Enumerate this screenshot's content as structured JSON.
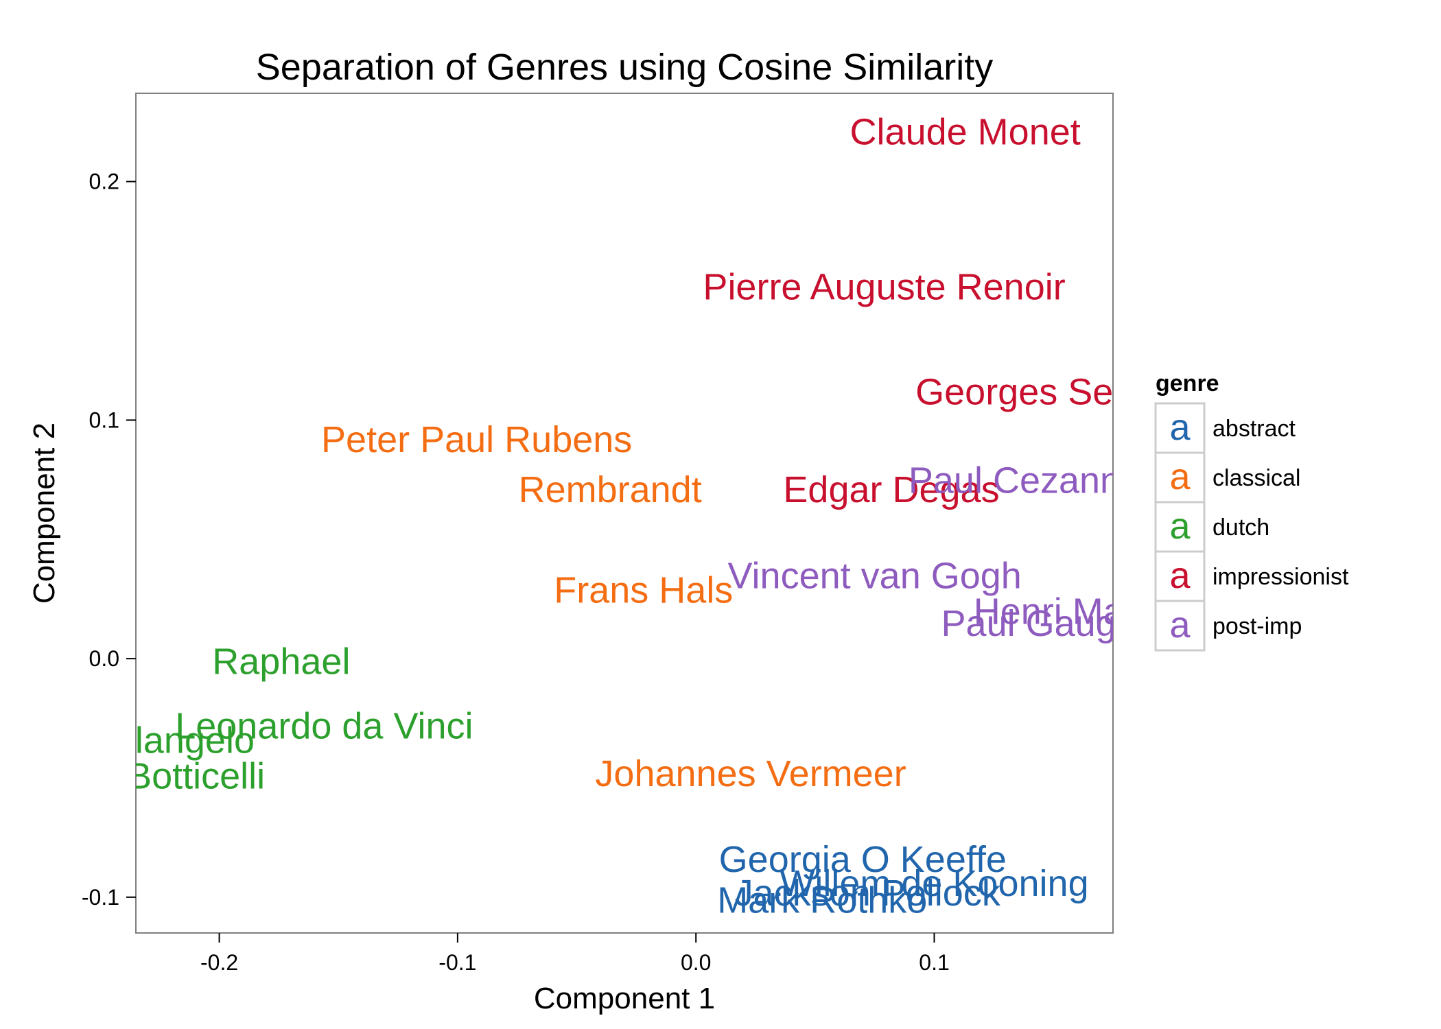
{
  "chart_data": {
    "type": "scatter",
    "title": "Separation of Genres using Cosine Similarity",
    "xlabel": "Component 1",
    "ylabel": "Component 2",
    "xlim": [
      -0.235,
      0.175
    ],
    "ylim": [
      -0.115,
      0.237
    ],
    "xticks": [
      -0.2,
      -0.1,
      0.0,
      0.1
    ],
    "xtick_labels": [
      "-0.2",
      "-0.1",
      "0.0",
      "0.1"
    ],
    "yticks": [
      -0.1,
      0.0,
      0.1,
      0.2
    ],
    "ytick_labels": [
      "-0.1",
      "0.0",
      "0.1",
      "0.2"
    ],
    "grid": false,
    "legend": {
      "title": "genre",
      "placement": "right",
      "key_glyph": "a",
      "entries": [
        {
          "name": "abstract",
          "color": "#2166ac"
        },
        {
          "name": "classical",
          "color": "#f46d13"
        },
        {
          "name": "dutch",
          "color": "#2ca02c"
        },
        {
          "name": "impressionist",
          "color": "#c8102e"
        },
        {
          "name": "post-imp",
          "color": "#8e5bbf"
        }
      ]
    },
    "series": [
      {
        "name": "abstract",
        "color": "#2166ac",
        "points": [
          {
            "label": "Georgia O Keeffe",
            "x": 0.07,
            "y": -0.084
          },
          {
            "label": "Willem de Kooning",
            "x": 0.1,
            "y": -0.094
          },
          {
            "label": "Jackson Pollock",
            "x": 0.072,
            "y": -0.098
          },
          {
            "label": "Mark Rothko",
            "x": 0.053,
            "y": -0.101
          }
        ]
      },
      {
        "name": "classical",
        "color": "#f46d13",
        "points": [
          {
            "label": "Peter Paul Rubens",
            "x": -0.092,
            "y": 0.092
          },
          {
            "label": "Rembrandt",
            "x": -0.036,
            "y": 0.071
          },
          {
            "label": "Frans Hals",
            "x": -0.022,
            "y": 0.029
          },
          {
            "label": "Johannes Vermeer",
            "x": 0.023,
            "y": -0.048
          }
        ]
      },
      {
        "name": "dutch",
        "color": "#2ca02c",
        "points": [
          {
            "label": "Raphael",
            "x": -0.174,
            "y": -0.001
          },
          {
            "label": "Leonardo da Vinci",
            "x": -0.156,
            "y": -0.028
          },
          {
            "label": "Michelangelo",
            "x": -0.231,
            "y": -0.034
          },
          {
            "label": "Sandro Botticelli",
            "x": -0.237,
            "y": -0.049
          }
        ]
      },
      {
        "name": "impressionist",
        "color": "#c8102e",
        "points": [
          {
            "label": "Claude Monet",
            "x": 0.113,
            "y": 0.221
          },
          {
            "label": "Pierre Auguste Renoir",
            "x": 0.079,
            "y": 0.156
          },
          {
            "label": "Georges Seurat",
            "x": 0.147,
            "y": 0.112
          },
          {
            "label": "Edgar Degas",
            "x": 0.082,
            "y": 0.071
          }
        ]
      },
      {
        "name": "post-imp",
        "color": "#8e5bbf",
        "points": [
          {
            "label": "Paul Cezanne",
            "x": 0.138,
            "y": 0.075
          },
          {
            "label": "Vincent van Gogh",
            "x": 0.075,
            "y": 0.035
          },
          {
            "label": "Henri Matisse",
            "x": 0.164,
            "y": 0.02
          },
          {
            "label": "Paul Gauguin",
            "x": 0.15,
            "y": 0.015
          }
        ]
      }
    ]
  }
}
